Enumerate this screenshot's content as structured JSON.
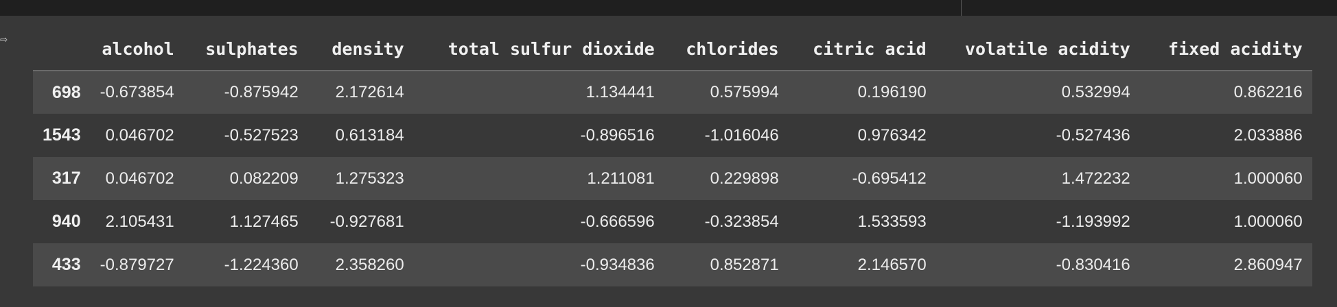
{
  "table": {
    "columns": [
      "alcohol",
      "sulphates",
      "density",
      "total sulfur dioxide",
      "chlorides",
      "citric acid",
      "volatile acidity",
      "fixed acidity"
    ],
    "rows": [
      {
        "index": "698",
        "values": [
          "-0.673854",
          "-0.875942",
          "2.172614",
          "1.134441",
          "0.575994",
          "0.196190",
          "0.532994",
          "0.862216"
        ]
      },
      {
        "index": "1543",
        "values": [
          "0.046702",
          "-0.527523",
          "0.613184",
          "-0.896516",
          "-1.016046",
          "0.976342",
          "-0.527436",
          "2.033886"
        ]
      },
      {
        "index": "317",
        "values": [
          "0.046702",
          "0.082209",
          "1.275323",
          "1.211081",
          "0.229898",
          "-0.695412",
          "1.472232",
          "1.000060"
        ]
      },
      {
        "index": "940",
        "values": [
          "2.105431",
          "1.127465",
          "-0.927681",
          "-0.666596",
          "-0.323854",
          "1.533593",
          "-1.193992",
          "1.000060"
        ]
      },
      {
        "index": "433",
        "values": [
          "-0.879727",
          "-1.224360",
          "2.358260",
          "-0.934836",
          "0.852871",
          "2.146570",
          "-0.830416",
          "2.860947"
        ]
      }
    ]
  },
  "icons": {
    "output": "output-redirect-icon"
  }
}
